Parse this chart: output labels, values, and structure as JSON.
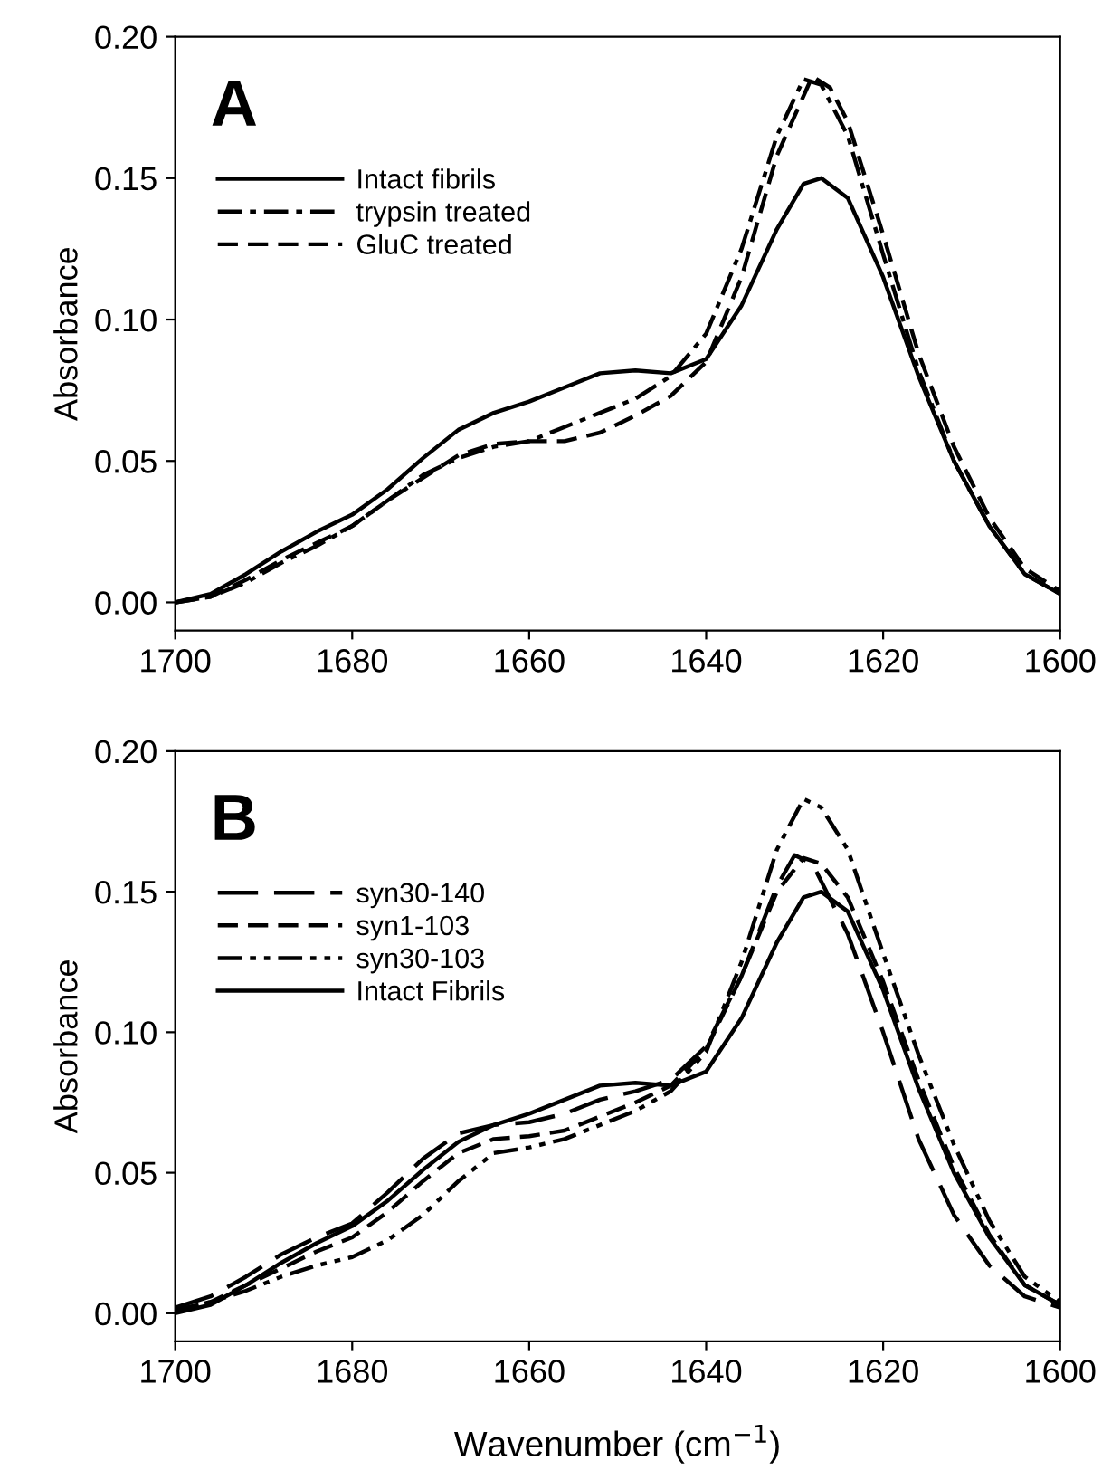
{
  "chart_data": [
    {
      "type": "line",
      "ylabel": "Absorbance",
      "annotations": [
        "A"
      ],
      "legend": "top left",
      "xlim": [
        1700,
        1600
      ],
      "xticks": [
        1700,
        1680,
        1660,
        1640,
        1620,
        1600
      ],
      "ylim": [
        -0.01,
        0.2
      ],
      "yticks": [
        {
          "value": 0,
          "label": "0.00"
        },
        {
          "value": 0.05,
          "label": "0.05"
        },
        {
          "value": 0.1,
          "label": "0.10"
        },
        {
          "value": 0.15,
          "label": "0.15"
        },
        {
          "value": 0.2,
          "label": "0.20"
        }
      ],
      "series": [
        {
          "name": "Intact fibrils",
          "color": "#000000",
          "line_style": "solid",
          "x": [
            1700,
            1696,
            1692,
            1688,
            1684,
            1680,
            1676,
            1672,
            1668,
            1664,
            1660,
            1656,
            1652,
            1648,
            1644,
            1640,
            1636,
            1632,
            1629,
            1627,
            1624,
            1620,
            1616,
            1612,
            1608,
            1604,
            1600
          ],
          "values": [
            0.0,
            0.003,
            0.01,
            0.018,
            0.025,
            0.031,
            0.04,
            0.051,
            0.061,
            0.067,
            0.071,
            0.076,
            0.081,
            0.082,
            0.081,
            0.086,
            0.105,
            0.132,
            0.148,
            0.15,
            0.143,
            0.115,
            0.08,
            0.05,
            0.027,
            0.01,
            0.003
          ]
        },
        {
          "name": "trypsin treated",
          "color": "#000000",
          "line_style": "dashdot",
          "x": [
            1700,
            1696,
            1692,
            1688,
            1684,
            1680,
            1676,
            1672,
            1668,
            1664,
            1660,
            1656,
            1652,
            1648,
            1644,
            1640,
            1636,
            1632,
            1629,
            1627,
            1624,
            1620,
            1616,
            1612,
            1608,
            1604,
            1600
          ],
          "values": [
            0.0,
            0.002,
            0.007,
            0.014,
            0.02,
            0.027,
            0.036,
            0.045,
            0.051,
            0.055,
            0.057,
            0.062,
            0.067,
            0.072,
            0.08,
            0.095,
            0.125,
            0.165,
            0.185,
            0.183,
            0.165,
            0.123,
            0.082,
            0.05,
            0.027,
            0.01,
            0.003
          ]
        },
        {
          "name": "GluC treated",
          "color": "#000000",
          "line_style": "dashed",
          "x": [
            1700,
            1696,
            1692,
            1688,
            1684,
            1680,
            1676,
            1672,
            1668,
            1664,
            1660,
            1656,
            1652,
            1648,
            1644,
            1640,
            1636,
            1632,
            1628,
            1626,
            1624,
            1620,
            1616,
            1612,
            1608,
            1604,
            1600
          ],
          "values": [
            0.0,
            0.002,
            0.008,
            0.015,
            0.021,
            0.027,
            0.036,
            0.044,
            0.052,
            0.056,
            0.057,
            0.057,
            0.06,
            0.066,
            0.073,
            0.085,
            0.115,
            0.158,
            0.186,
            0.182,
            0.17,
            0.13,
            0.088,
            0.055,
            0.03,
            0.012,
            0.004
          ]
        }
      ]
    },
    {
      "type": "line",
      "xlabel": "Wavenumber (cm$^{−1}$)",
      "ylabel": "Absorbance",
      "annotations": [
        "B"
      ],
      "legend": "top left",
      "xlim": [
        1700,
        1600
      ],
      "xticks": [
        1700,
        1680,
        1660,
        1640,
        1620,
        1600
      ],
      "ylim": [
        -0.01,
        0.2
      ],
      "yticks": [
        {
          "value": 0,
          "label": "0.00"
        },
        {
          "value": 0.05,
          "label": "0.05"
        },
        {
          "value": 0.1,
          "label": "0.10"
        },
        {
          "value": 0.15,
          "label": "0.15"
        },
        {
          "value": 0.2,
          "label": "0.20"
        }
      ],
      "series": [
        {
          "name": "syn30-140",
          "color": "#000000",
          "line_style": "longdash",
          "x": [
            1700,
            1696,
            1692,
            1688,
            1684,
            1680,
            1676,
            1672,
            1668,
            1664,
            1660,
            1656,
            1652,
            1648,
            1644,
            1640,
            1636,
            1632,
            1630,
            1628,
            1624,
            1620,
            1616,
            1612,
            1608,
            1604,
            1600
          ],
          "values": [
            0.002,
            0.006,
            0.013,
            0.021,
            0.027,
            0.032,
            0.043,
            0.055,
            0.064,
            0.067,
            0.068,
            0.071,
            0.076,
            0.079,
            0.083,
            0.095,
            0.12,
            0.152,
            0.163,
            0.16,
            0.135,
            0.1,
            0.062,
            0.035,
            0.017,
            0.006,
            0.002
          ]
        },
        {
          "name": "syn1-103",
          "color": "#000000",
          "line_style": "dashed",
          "x": [
            1700,
            1696,
            1692,
            1688,
            1684,
            1680,
            1676,
            1672,
            1668,
            1664,
            1660,
            1656,
            1652,
            1648,
            1644,
            1640,
            1636,
            1632,
            1629,
            1627,
            1624,
            1620,
            1616,
            1612,
            1608,
            1604,
            1600
          ],
          "values": [
            0.001,
            0.004,
            0.01,
            0.016,
            0.022,
            0.027,
            0.036,
            0.047,
            0.057,
            0.062,
            0.063,
            0.065,
            0.07,
            0.075,
            0.081,
            0.094,
            0.12,
            0.15,
            0.162,
            0.16,
            0.148,
            0.118,
            0.083,
            0.052,
            0.028,
            0.01,
            0.003
          ]
        },
        {
          "name": "syn30-103",
          "color": "#000000",
          "line_style": "dashdotdot",
          "x": [
            1700,
            1696,
            1692,
            1688,
            1684,
            1680,
            1676,
            1672,
            1668,
            1664,
            1660,
            1656,
            1652,
            1648,
            1644,
            1640,
            1636,
            1632,
            1629,
            1627,
            1624,
            1620,
            1616,
            1612,
            1608,
            1604,
            1600
          ],
          "values": [
            0.001,
            0.004,
            0.008,
            0.013,
            0.017,
            0.02,
            0.026,
            0.035,
            0.047,
            0.057,
            0.059,
            0.062,
            0.067,
            0.072,
            0.079,
            0.093,
            0.125,
            0.165,
            0.183,
            0.18,
            0.165,
            0.128,
            0.092,
            0.06,
            0.033,
            0.013,
            0.004
          ]
        },
        {
          "name": "Intact Fibrils",
          "color": "#000000",
          "line_style": "solid",
          "x": [
            1700,
            1696,
            1692,
            1688,
            1684,
            1680,
            1676,
            1672,
            1668,
            1664,
            1660,
            1656,
            1652,
            1648,
            1644,
            1640,
            1636,
            1632,
            1629,
            1627,
            1624,
            1620,
            1616,
            1612,
            1608,
            1604,
            1600
          ],
          "values": [
            0.0,
            0.003,
            0.01,
            0.018,
            0.025,
            0.031,
            0.04,
            0.051,
            0.061,
            0.067,
            0.071,
            0.076,
            0.081,
            0.082,
            0.081,
            0.086,
            0.105,
            0.132,
            0.148,
            0.15,
            0.143,
            0.115,
            0.08,
            0.05,
            0.027,
            0.01,
            0.003
          ]
        }
      ]
    }
  ]
}
